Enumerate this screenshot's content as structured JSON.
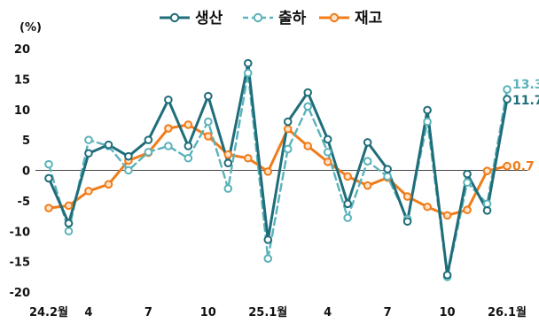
{
  "chart_data": {
    "type": "line",
    "ylabel": "(%)",
    "ylim": [
      -20,
      20
    ],
    "yticks": [
      20,
      15,
      10,
      5,
      0,
      -5,
      -10,
      -15,
      -20
    ],
    "x_tick_labels": [
      {
        "index": 0,
        "label": "24.2월"
      },
      {
        "index": 2,
        "label": "4"
      },
      {
        "index": 5,
        "label": "7"
      },
      {
        "index": 8,
        "label": "10"
      },
      {
        "index": 11,
        "label": "25.1월"
      },
      {
        "index": 14,
        "label": "4"
      },
      {
        "index": 17,
        "label": "7"
      },
      {
        "index": 20,
        "label": "10"
      },
      {
        "index": 23,
        "label": "26.1월"
      }
    ],
    "legend_position": "top-center",
    "series": [
      {
        "name": "생산",
        "color": "#1f6d7a",
        "dash": "solid",
        "marker": "filled",
        "values": [
          -1.3,
          -8.7,
          2.8,
          4.2,
          2.3,
          5.0,
          11.6,
          4.0,
          12.2,
          1.2,
          17.6,
          -11.4,
          8.0,
          12.8,
          5.1,
          -5.5,
          4.6,
          0.2,
          -8.4,
          9.9,
          -17.2,
          -0.6,
          -6.6,
          11.7
        ]
      },
      {
        "name": "출하",
        "color": "#5ab3ba",
        "dash": "dashed",
        "marker": "open",
        "values": [
          1.0,
          -10.0,
          5.0,
          4.0,
          0.0,
          3.0,
          4.0,
          2.0,
          8.0,
          -3.0,
          16.0,
          -14.5,
          3.5,
          10.5,
          3.0,
          -7.8,
          1.5,
          -1.0,
          -8.0,
          8.0,
          -17.5,
          -2.0,
          -5.5,
          13.3
        ]
      },
      {
        "name": "재고",
        "color": "#f07c1a",
        "dash": "solid",
        "marker": "filled-light",
        "values": [
          -6.2,
          -5.8,
          -3.4,
          -2.3,
          1.6,
          2.9,
          6.9,
          7.5,
          5.6,
          2.6,
          2.0,
          -0.2,
          6.8,
          4.0,
          1.4,
          -1.0,
          -2.5,
          -1.2,
          -4.3,
          -6.0,
          -7.4,
          -6.5,
          -0.1,
          0.7
        ]
      }
    ],
    "end_labels": [
      {
        "series": "출하",
        "text": "13.3",
        "color": "#5ab3ba"
      },
      {
        "series": "생산",
        "text": "11.7",
        "color": "#1f6d7a"
      },
      {
        "series": "재고",
        "text": "0.7",
        "color": "#f07c1a"
      }
    ]
  }
}
